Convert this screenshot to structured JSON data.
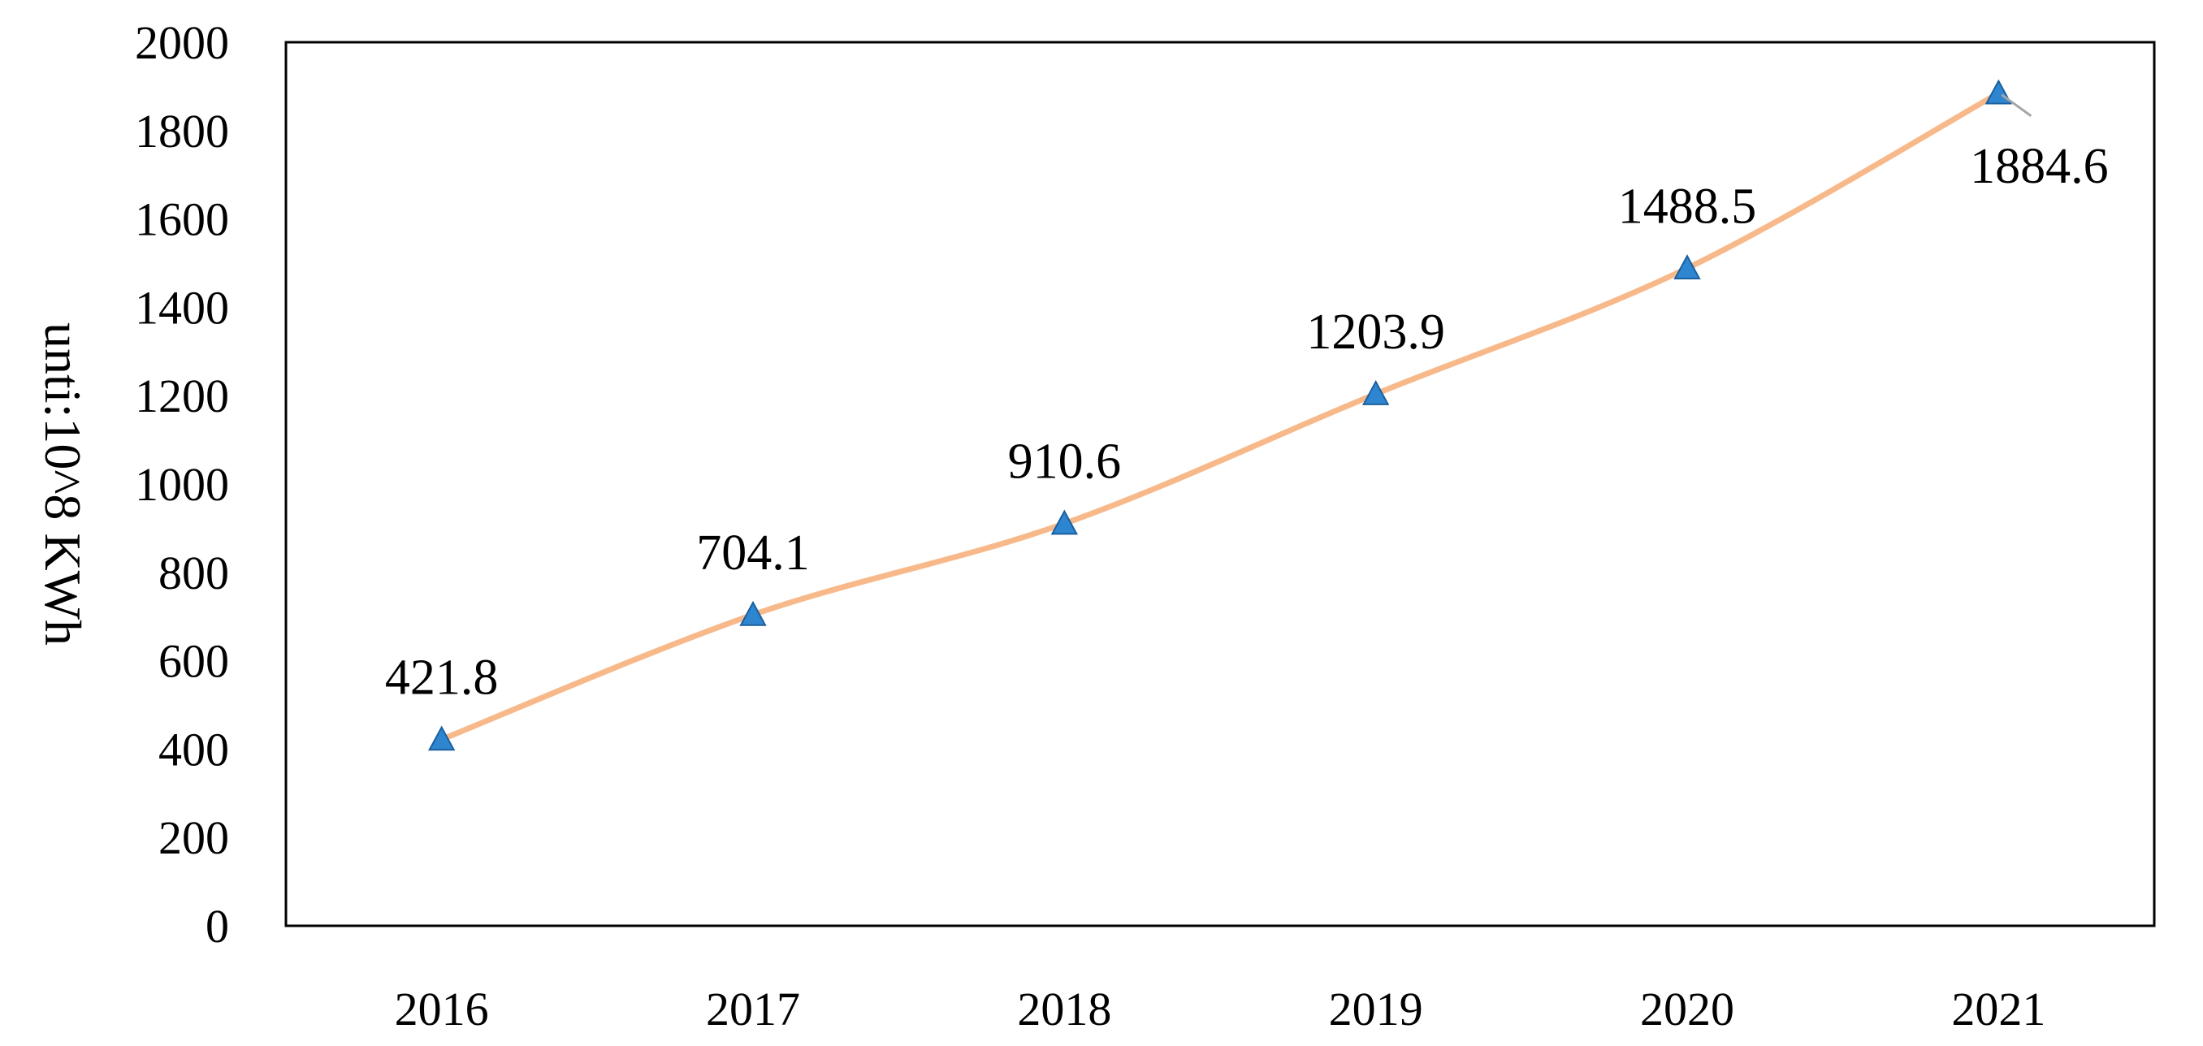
{
  "chart_data": {
    "type": "line",
    "title": "",
    "xlabel": "",
    "ylabel": "unti:10^8 KWh",
    "categories": [
      "2016",
      "2017",
      "2018",
      "2019",
      "2020",
      "2021"
    ],
    "series": [
      {
        "values": [
          421.8,
          704.1,
          910.6,
          1203.9,
          1488.5,
          1884.6
        ],
        "data_labels": [
          "421.8",
          "704.1",
          "910.6",
          "1203.9",
          "1488.5",
          "1884.6"
        ],
        "line_color": "#F8B98A",
        "marker": "triangle",
        "marker_color": "#2E86D1",
        "marker_edge_color": "#1A5F9E"
      }
    ],
    "ylim": [
      0,
      2000
    ],
    "yticks": [
      "0",
      "200",
      "400",
      "600",
      "800",
      "1000",
      "1200",
      "1400",
      "1600",
      "1800",
      "2000"
    ],
    "grid": false,
    "legend": "none"
  }
}
